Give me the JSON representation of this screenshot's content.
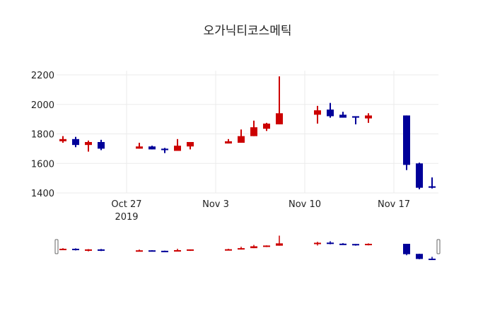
{
  "chart_data": {
    "type": "candlestick",
    "title": "오가닉티코스메틱",
    "xlabel": "",
    "ylabel": "",
    "ylim": [
      1390,
      2230
    ],
    "y_ticks": [
      1400,
      1600,
      1800,
      2000,
      2200
    ],
    "x_ticks": [
      {
        "date": "2019-10-27",
        "label": "Oct 27",
        "sublabel": "2019"
      },
      {
        "date": "2019-11-03",
        "label": "Nov 3",
        "sublabel": ""
      },
      {
        "date": "2019-11-10",
        "label": "Nov 10",
        "sublabel": ""
      },
      {
        "date": "2019-11-17",
        "label": "Nov 17",
        "sublabel": ""
      }
    ],
    "grid": true,
    "rangeslider": true,
    "increasing_color": "#cc0000",
    "decreasing_color": "#000099",
    "x": [
      "2019-10-22",
      "2019-10-23",
      "2019-10-24",
      "2019-10-25",
      "2019-10-28",
      "2019-10-29",
      "2019-10-30",
      "2019-10-31",
      "2019-11-01",
      "2019-11-04",
      "2019-11-05",
      "2019-11-06",
      "2019-11-07",
      "2019-11-08",
      "2019-11-11",
      "2019-11-12",
      "2019-11-13",
      "2019-11-14",
      "2019-11-15",
      "2019-11-18",
      "2019-11-19",
      "2019-11-20"
    ],
    "open": [
      1750,
      1765,
      1725,
      1745,
      1700,
      1715,
      1700,
      1685,
      1715,
      1735,
      1740,
      1785,
      1835,
      1865,
      1930,
      1965,
      1930,
      1920,
      1905,
      1925,
      1600,
      1445
    ],
    "high": [
      1785,
      1780,
      1755,
      1760,
      1740,
      1720,
      1705,
      1765,
      1745,
      1765,
      1830,
      1890,
      1875,
      2190,
      1990,
      2010,
      1950,
      1920,
      1940,
      1925,
      1605,
      1505
    ],
    "low": [
      1740,
      1710,
      1680,
      1690,
      1700,
      1695,
      1670,
      1685,
      1695,
      1735,
      1740,
      1785,
      1820,
      1865,
      1870,
      1910,
      1910,
      1865,
      1875,
      1555,
      1425,
      1430
    ],
    "close": [
      1765,
      1725,
      1745,
      1700,
      1715,
      1695,
      1690,
      1720,
      1745,
      1750,
      1785,
      1845,
      1870,
      1940,
      1960,
      1920,
      1910,
      1910,
      1925,
      1590,
      1435,
      1435
    ]
  },
  "page": {
    "title": "오가닉티코스메틱"
  }
}
